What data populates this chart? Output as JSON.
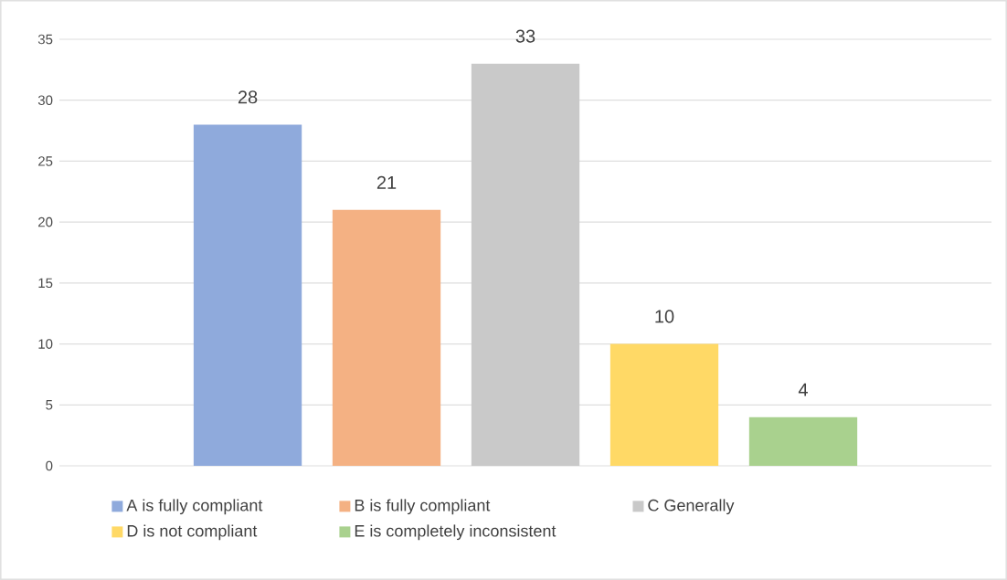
{
  "chart_data": {
    "type": "bar",
    "categories": [
      null
    ],
    "series": [
      {
        "name": "A is fully compliant",
        "color": "#8faadc",
        "values": [
          28
        ]
      },
      {
        "name": "B is fully compliant",
        "color": "#f4b183",
        "values": [
          21
        ]
      },
      {
        "name": "C Generally",
        "color": "#c9c9c9",
        "values": [
          33
        ]
      },
      {
        "name": "D is not compliant",
        "color": "#ffd966",
        "values": [
          10
        ]
      },
      {
        "name": "E is completely inconsistent",
        "color": "#a9d18e",
        "values": [
          4
        ]
      }
    ],
    "ylim": [
      0,
      35
    ],
    "yticks": [
      0,
      5,
      10,
      15,
      20,
      25,
      30,
      35
    ],
    "grid": "y",
    "legend": "bottom",
    "data_labels": true
  }
}
